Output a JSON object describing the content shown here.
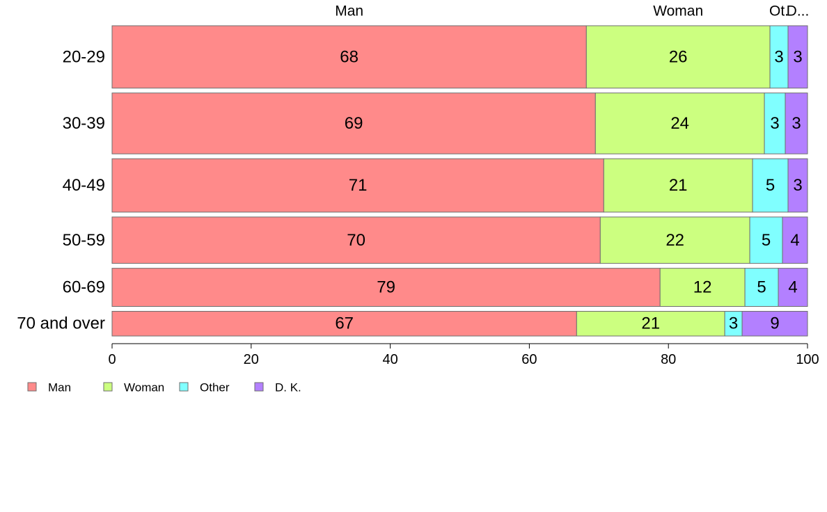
{
  "chart_data": {
    "type": "bar",
    "orientation": "horizontal",
    "stacked": true,
    "title": "",
    "xlabel": "",
    "ylabel": "",
    "xlim": [
      0,
      100
    ],
    "xticks": [
      "0",
      "20",
      "40",
      "60",
      "80",
      "100"
    ],
    "categories": [
      "20-29",
      "30-39",
      "40-49",
      "50-59",
      "60-69",
      "70 and over"
    ],
    "category_weights": [
      0.25,
      0.244,
      0.214,
      0.186,
      0.153,
      0.099
    ],
    "series": [
      {
        "name": "Man",
        "color": "#ff8a8a",
        "values": [
          68.2,
          69.5,
          70.7,
          70.2,
          78.8,
          66.8
        ]
      },
      {
        "name": "Woman",
        "color": "#ccff80",
        "values": [
          26.4,
          24.3,
          21.4,
          21.5,
          12.2,
          21.3
        ]
      },
      {
        "name": "Other",
        "color": "#80ffff",
        "values": [
          2.6,
          3.0,
          5.1,
          4.7,
          4.8,
          2.5
        ]
      },
      {
        "name": "D. K.",
        "color": "#b380ff",
        "values": [
          2.8,
          3.2,
          2.8,
          3.6,
          4.2,
          9.4
        ]
      }
    ],
    "data_labels": [
      [
        "68",
        "26",
        "3",
        "3"
      ],
      [
        "69",
        "24",
        "3",
        "3"
      ],
      [
        "71",
        "21",
        "5",
        "3"
      ],
      [
        "70",
        "22",
        "5",
        "4"
      ],
      [
        "79",
        "12",
        "5",
        "4"
      ],
      [
        "67",
        "21",
        "3",
        "9"
      ]
    ],
    "top_labels": [
      "Man",
      "Woman",
      "Ot.",
      "D..."
    ],
    "legend": {
      "position": "bottom-left",
      "entries": [
        "Man",
        "Woman",
        "Other",
        "D. K."
      ]
    },
    "grid": false
  }
}
